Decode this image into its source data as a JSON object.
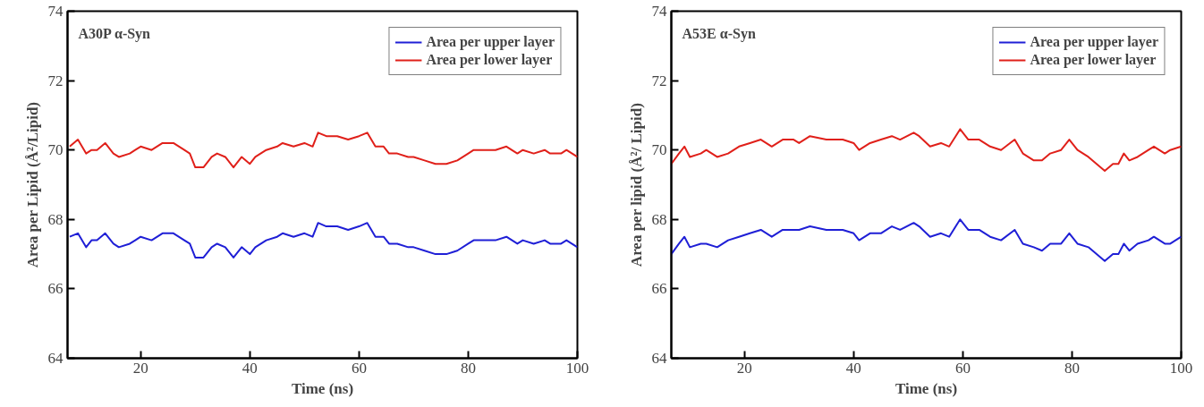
{
  "chart_data": [
    {
      "type": "line",
      "xlabel": "Time (ns)",
      "ylabel": "Area per Lipid (Å²/Lipid)",
      "annotations": [
        "A30P  α-Syn"
      ],
      "xlim": [
        6.6,
        100
      ],
      "ylim": [
        64,
        74
      ],
      "xticks": [
        20,
        40,
        60,
        80,
        100
      ],
      "yticks": [
        64,
        66,
        68,
        70,
        72,
        74
      ],
      "grid": false,
      "legend": "top right",
      "marker": "none",
      "line_style": "solid",
      "x": [
        7,
        8.5,
        10,
        11,
        12,
        13.5,
        15,
        16,
        18,
        19,
        20,
        22,
        24,
        26,
        28,
        29,
        30,
        31.5,
        33,
        34,
        35.5,
        37,
        38.5,
        40,
        41,
        43,
        45,
        46,
        48,
        50,
        51.5,
        52.5,
        54,
        56,
        58,
        60,
        61.5,
        63,
        64.5,
        65.5,
        67,
        69,
        70,
        72,
        74,
        76,
        78,
        80,
        81,
        83,
        85,
        87,
        89,
        90,
        92,
        94,
        95,
        97,
        98,
        100
      ],
      "series": [
        {
          "name": "Area per upper layer",
          "color": "#1f1fd6",
          "values": [
            67.5,
            67.6,
            67.2,
            67.4,
            67.4,
            67.6,
            67.3,
            67.2,
            67.3,
            67.4,
            67.5,
            67.4,
            67.6,
            67.6,
            67.4,
            67.3,
            66.9,
            66.9,
            67.2,
            67.3,
            67.2,
            66.9,
            67.2,
            67.0,
            67.2,
            67.4,
            67.5,
            67.6,
            67.5,
            67.6,
            67.5,
            67.9,
            67.8,
            67.8,
            67.7,
            67.8,
            67.9,
            67.5,
            67.5,
            67.3,
            67.3,
            67.2,
            67.2,
            67.1,
            67.0,
            67.0,
            67.1,
            67.3,
            67.4,
            67.4,
            67.4,
            67.5,
            67.3,
            67.4,
            67.3,
            67.4,
            67.3,
            67.3,
            67.4,
            67.2
          ]
        },
        {
          "name": "Area per lower layer",
          "color": "#e0201a",
          "values": [
            70.1,
            70.3,
            69.9,
            70.0,
            70.0,
            70.2,
            69.9,
            69.8,
            69.9,
            70.0,
            70.1,
            70.0,
            70.2,
            70.2,
            70.0,
            69.9,
            69.5,
            69.5,
            69.8,
            69.9,
            69.8,
            69.5,
            69.8,
            69.6,
            69.8,
            70.0,
            70.1,
            70.2,
            70.1,
            70.2,
            70.1,
            70.5,
            70.4,
            70.4,
            70.3,
            70.4,
            70.5,
            70.1,
            70.1,
            69.9,
            69.9,
            69.8,
            69.8,
            69.7,
            69.6,
            69.6,
            69.7,
            69.9,
            70.0,
            70.0,
            70.0,
            70.1,
            69.9,
            70.0,
            69.9,
            70.0,
            69.9,
            69.9,
            70.0,
            69.8
          ]
        }
      ]
    },
    {
      "type": "line",
      "xlabel": "Time (ns)",
      "ylabel": "Area per lipid (Å²/ Lipid)",
      "annotations": [
        "A53E  α-Syn"
      ],
      "xlim": [
        6.6,
        100
      ],
      "ylim": [
        64,
        74
      ],
      "xticks": [
        20,
        40,
        60,
        80,
        100
      ],
      "yticks": [
        64,
        66,
        68,
        70,
        72,
        74
      ],
      "grid": false,
      "legend": "top right",
      "marker": "none",
      "line_style": "solid",
      "x": [
        6.6,
        8,
        9,
        10,
        12,
        13,
        15,
        17,
        19,
        21,
        23,
        25,
        27,
        29,
        30,
        32,
        35,
        38,
        40,
        41,
        43,
        45,
        47,
        48.5,
        51,
        52,
        54,
        56,
        57.5,
        59.5,
        61,
        63,
        65,
        67,
        69.5,
        71,
        73,
        74.5,
        76,
        78,
        79.5,
        81,
        83,
        86,
        87.5,
        88.5,
        89.5,
        90.5,
        92,
        94,
        95,
        97,
        98,
        100
      ],
      "series": [
        {
          "name": "Area per upper layer",
          "color": "#1f1fd6",
          "values": [
            67.0,
            67.3,
            67.5,
            67.2,
            67.3,
            67.3,
            67.2,
            67.4,
            67.5,
            67.6,
            67.7,
            67.5,
            67.7,
            67.7,
            67.7,
            67.8,
            67.7,
            67.7,
            67.6,
            67.4,
            67.6,
            67.6,
            67.8,
            67.7,
            67.9,
            67.8,
            67.5,
            67.6,
            67.5,
            68.0,
            67.7,
            67.7,
            67.5,
            67.4,
            67.7,
            67.3,
            67.2,
            67.1,
            67.3,
            67.3,
            67.6,
            67.3,
            67.2,
            66.8,
            67.0,
            67.0,
            67.3,
            67.1,
            67.3,
            67.4,
            67.5,
            67.3,
            67.3,
            67.5
          ]
        },
        {
          "name": "Area per lower layer",
          "color": "#e0201a",
          "values": [
            69.6,
            69.9,
            70.1,
            69.8,
            69.9,
            70.0,
            69.8,
            69.9,
            70.1,
            70.2,
            70.3,
            70.1,
            70.3,
            70.3,
            70.2,
            70.4,
            70.3,
            70.3,
            70.2,
            70.0,
            70.2,
            70.3,
            70.4,
            70.3,
            70.5,
            70.4,
            70.1,
            70.2,
            70.1,
            70.6,
            70.3,
            70.3,
            70.1,
            70.0,
            70.3,
            69.9,
            69.7,
            69.7,
            69.9,
            70.0,
            70.3,
            70.0,
            69.8,
            69.4,
            69.6,
            69.6,
            69.9,
            69.7,
            69.8,
            70.0,
            70.1,
            69.9,
            70.0,
            70.1
          ]
        }
      ]
    }
  ]
}
